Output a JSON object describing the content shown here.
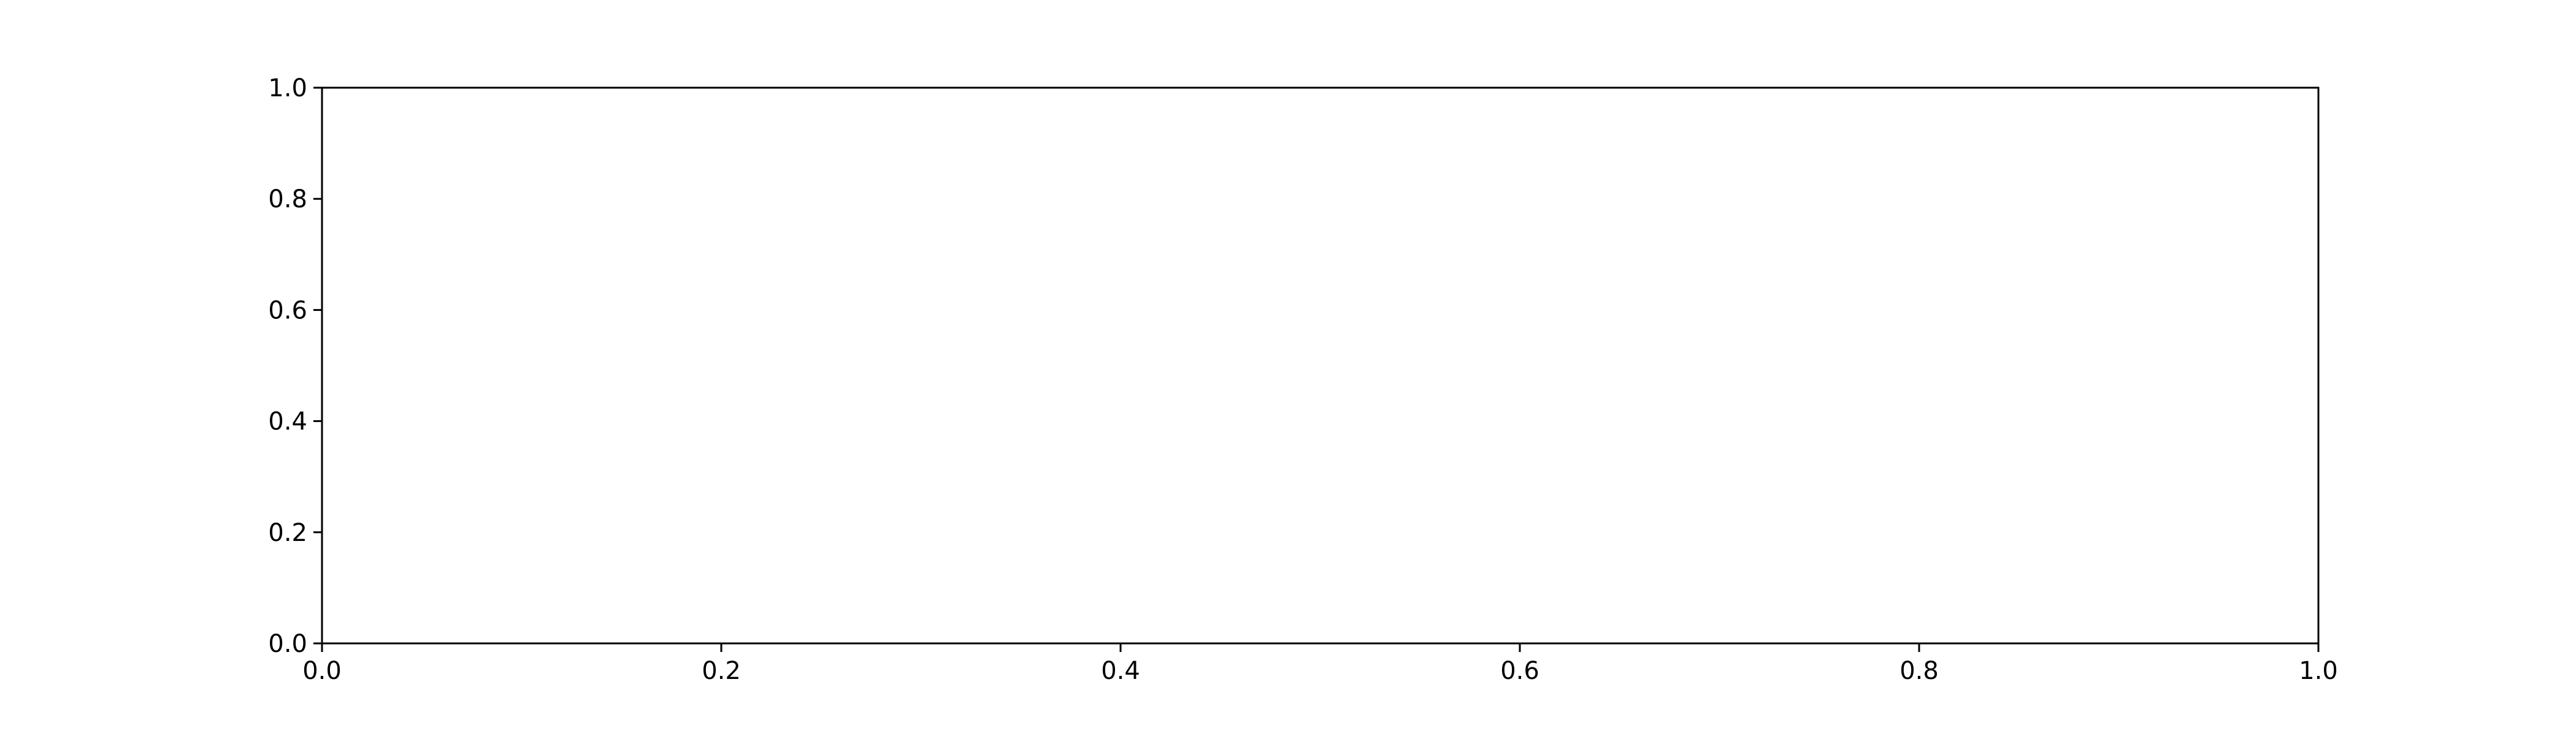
{
  "chart_data": {
    "type": "line",
    "title": "",
    "xlabel": "",
    "ylabel": "",
    "xlim": [
      0.0,
      1.0
    ],
    "ylim": [
      0.0,
      1.0
    ],
    "x_ticks": [
      "0.0",
      "0.2",
      "0.4",
      "0.6",
      "0.8",
      "1.0"
    ],
    "y_ticks": [
      "0.0",
      "0.2",
      "0.4",
      "0.6",
      "0.8",
      "1.0"
    ],
    "series": [],
    "grid": false,
    "legend": "none",
    "colors": {
      "axes": "#000000",
      "background": "#ffffff"
    }
  }
}
